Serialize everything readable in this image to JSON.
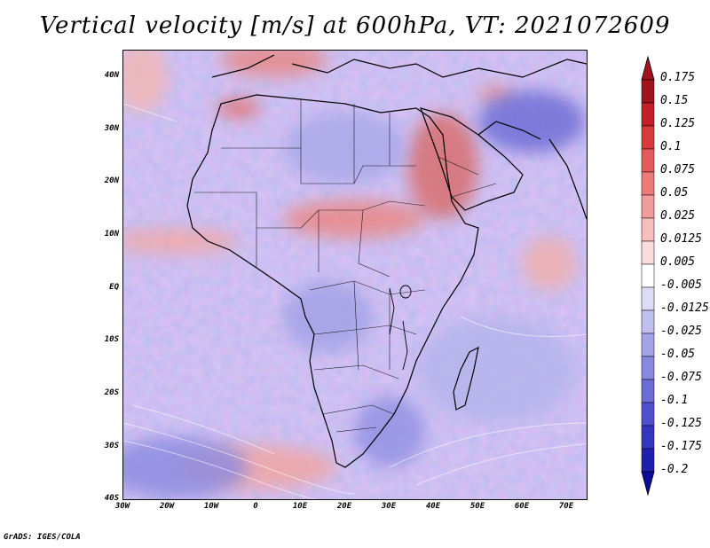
{
  "title": "Vertical velocity [m/s] at 600hPa, VT: 2021072609",
  "credit": "GrADS: IGES/COLA",
  "map": {
    "latitude_labels": [
      "40N",
      "30N",
      "20N",
      "10N",
      "EQ",
      "10S",
      "20S",
      "30S",
      "40S"
    ],
    "longitude_labels": [
      "30W",
      "20W",
      "10W",
      "0",
      "10E",
      "20E",
      "30E",
      "40E",
      "50E",
      "60E",
      "70E"
    ]
  },
  "colorbar": {
    "labels": [
      "0.175",
      "0.15",
      "0.125",
      "0.1",
      "0.075",
      "0.05",
      "0.025",
      "0.0125",
      "0.005",
      "-0.005",
      "-0.0125",
      "-0.025",
      "-0.05",
      "-0.075",
      "-0.1",
      "-0.125",
      "-0.175",
      "-0.2"
    ],
    "colors": [
      "#a0141e",
      "#c21f28",
      "#d83a3c",
      "#e45a5a",
      "#ec7a78",
      "#f29c9a",
      "#f7bebc",
      "#fbdcdb",
      "#ffffff",
      "#dcdcf6",
      "#bfc0f0",
      "#a3a4e8",
      "#8788e0",
      "#6b6cd6",
      "#4f50cc",
      "#3536bf",
      "#1f20b0",
      "#0b0c9a"
    ]
  }
}
